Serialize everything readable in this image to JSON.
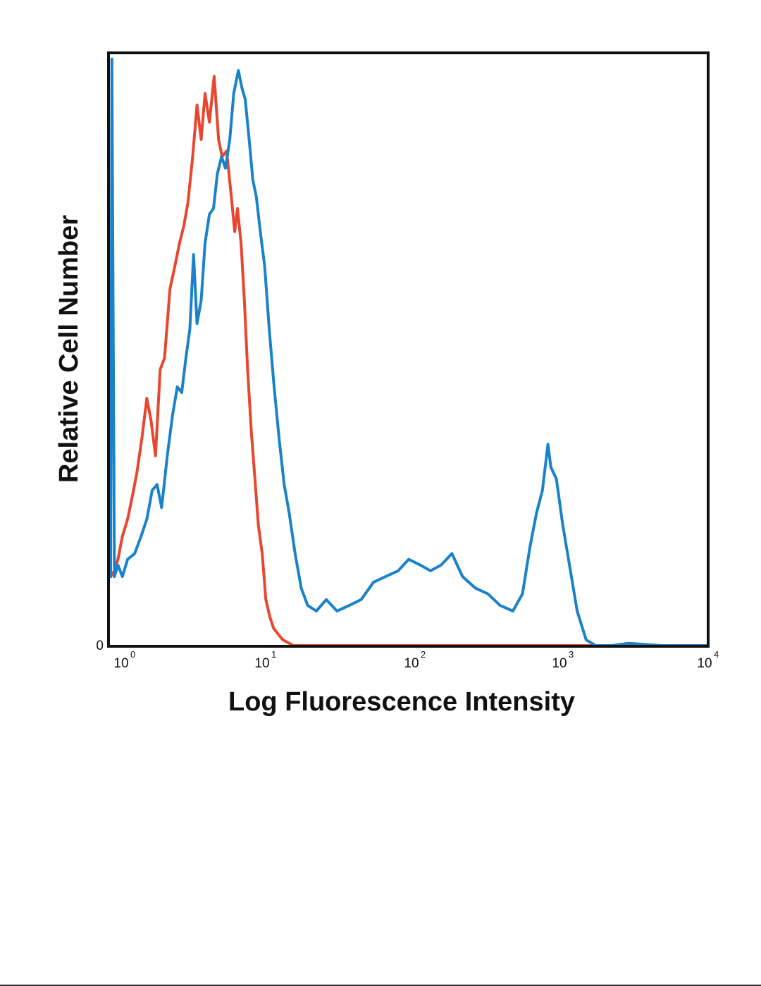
{
  "chart_data": {
    "type": "line",
    "title": "",
    "xlabel": "Log Fluorescence Intensity",
    "ylabel": "Relative Cell Number",
    "x_scale": "log",
    "xlim": [
      1,
      10000
    ],
    "ylim": [
      0,
      1
    ],
    "grid": false,
    "y_ticks": [
      {
        "value": 0,
        "label": "0"
      }
    ],
    "x_ticks": [
      {
        "value": 1,
        "base": "10",
        "exp": "0"
      },
      {
        "value": 10,
        "base": "10",
        "exp": "1"
      },
      {
        "value": 100,
        "base": "10",
        "exp": "2"
      },
      {
        "value": 1000,
        "base": "10",
        "exp": "3"
      },
      {
        "value": 10000,
        "base": "10",
        "exp": "4"
      }
    ],
    "series": [
      {
        "color": "#e8462f",
        "x": [
          1.0,
          1.06,
          1.12,
          1.2,
          1.3,
          1.4,
          1.5,
          1.62,
          1.75,
          1.87,
          2.0,
          2.15,
          2.3,
          2.5,
          2.7,
          2.9,
          3.1,
          3.3,
          3.55,
          3.8,
          4.05,
          4.3,
          4.6,
          4.95,
          5.3,
          5.6,
          6.0,
          6.4,
          6.8,
          7.1,
          7.5,
          7.9,
          8.3,
          8.8,
          9.3,
          9.8,
          10.4,
          11.0,
          11.7,
          12.4,
          13.3,
          14.3,
          15.5,
          16.9,
          18.6,
          20.5,
          30,
          100,
          1000,
          10000
        ],
        "y": [
          0.12,
          0.13,
          0.15,
          0.19,
          0.22,
          0.26,
          0.3,
          0.36,
          0.43,
          0.39,
          0.33,
          0.48,
          0.5,
          0.62,
          0.66,
          0.7,
          0.73,
          0.77,
          0.85,
          0.94,
          0.88,
          0.96,
          0.91,
          0.99,
          0.88,
          0.85,
          0.86,
          0.79,
          0.72,
          0.76,
          0.7,
          0.6,
          0.48,
          0.37,
          0.29,
          0.21,
          0.16,
          0.08,
          0.05,
          0.03,
          0.02,
          0.01,
          0.005,
          0.0,
          0.0,
          0.0,
          0.0,
          0.0,
          0.0,
          0.0
        ]
      },
      {
        "color": "#1a82c8",
        "x": [
          1.0,
          1.02,
          1.06,
          1.12,
          1.2,
          1.3,
          1.45,
          1.6,
          1.75,
          1.9,
          2.05,
          2.2,
          2.4,
          2.6,
          2.8,
          3.0,
          3.2,
          3.4,
          3.6,
          3.8,
          4.05,
          4.3,
          4.6,
          4.9,
          5.2,
          5.55,
          5.9,
          6.3,
          6.7,
          7.2,
          7.6,
          8.0,
          8.5,
          9.0,
          9.5,
          10.1,
          10.8,
          11.6,
          12.5,
          13.5,
          14.6,
          15.8,
          17.3,
          19,
          21,
          24,
          28,
          33,
          40,
          48,
          58,
          70,
          85,
          100,
          120,
          140,
          165,
          195,
          230,
          280,
          340,
          410,
          500,
          580,
          650,
          720,
          790,
          860,
          900,
          980,
          1080,
          1200,
          1350,
          1550,
          1800,
          2300,
          3000,
          5000,
          10000
        ],
        "y": [
          0.12,
          1.02,
          0.12,
          0.14,
          0.12,
          0.15,
          0.16,
          0.19,
          0.22,
          0.27,
          0.28,
          0.24,
          0.33,
          0.4,
          0.45,
          0.44,
          0.5,
          0.55,
          0.68,
          0.56,
          0.6,
          0.7,
          0.75,
          0.76,
          0.82,
          0.85,
          0.83,
          0.88,
          0.96,
          1.0,
          0.97,
          0.95,
          0.88,
          0.81,
          0.78,
          0.72,
          0.66,
          0.55,
          0.45,
          0.36,
          0.28,
          0.23,
          0.16,
          0.1,
          0.07,
          0.06,
          0.08,
          0.06,
          0.07,
          0.08,
          0.11,
          0.12,
          0.13,
          0.15,
          0.14,
          0.13,
          0.14,
          0.16,
          0.12,
          0.1,
          0.09,
          0.07,
          0.06,
          0.09,
          0.17,
          0.23,
          0.27,
          0.35,
          0.31,
          0.29,
          0.21,
          0.14,
          0.06,
          0.01,
          0.0,
          0.0,
          0.004,
          0.0,
          0.0
        ]
      }
    ]
  }
}
